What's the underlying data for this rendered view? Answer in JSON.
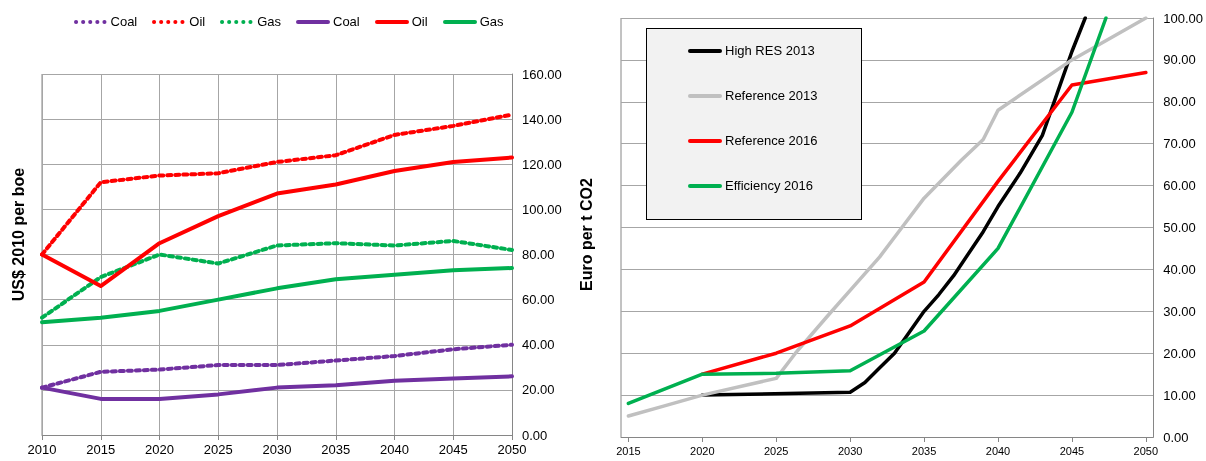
{
  "chart_data": [
    {
      "type": "line",
      "ylabel": "US$ 2010 per boe",
      "x": [
        2010,
        2015,
        2020,
        2025,
        2030,
        2035,
        2040,
        2045,
        2050
      ],
      "xlim": [
        2010,
        2050
      ],
      "xticks": [
        2010,
        2015,
        2020,
        2025,
        2030,
        2035,
        2040,
        2045,
        2050
      ],
      "ylim": [
        0,
        160
      ],
      "yticks": [
        {
          "value": 0,
          "label": "0.00"
        },
        {
          "value": 20,
          "label": "20.00"
        },
        {
          "value": 40,
          "label": "40.00"
        },
        {
          "value": 60,
          "label": "60.00"
        },
        {
          "value": 80,
          "label": "80.00"
        },
        {
          "value": 100,
          "label": "100.00"
        },
        {
          "value": 120,
          "label": "120.00"
        },
        {
          "value": 140,
          "label": "140.00"
        },
        {
          "value": 160,
          "label": "160.00"
        }
      ],
      "grid": true,
      "legend": "top",
      "marker": "none",
      "line_style": "solid",
      "series": [
        {
          "name": "Coal",
          "color": "#7030a0",
          "line_style": "dotted",
          "values": [
            21,
            28,
            29,
            31,
            31,
            33,
            35,
            38,
            40
          ]
        },
        {
          "name": "Oil",
          "color": "#ff0000",
          "line_style": "dotted",
          "values": [
            80,
            112,
            115,
            116,
            121,
            124,
            133,
            137,
            142
          ]
        },
        {
          "name": "Gas",
          "color": "#00b050",
          "line_style": "dotted",
          "values": [
            52,
            70,
            80,
            76,
            84,
            85,
            84,
            86,
            82
          ]
        },
        {
          "name": "Coal",
          "color": "#7030a0",
          "values": [
            21,
            16,
            16,
            18,
            21,
            22,
            24,
            25,
            26
          ]
        },
        {
          "name": "Oil",
          "color": "#ff0000",
          "values": [
            80,
            66,
            85,
            97,
            107,
            111,
            117,
            121,
            123
          ]
        },
        {
          "name": "Gas",
          "color": "#00b050",
          "values": [
            50,
            52,
            55,
            60,
            65,
            69,
            71,
            73,
            74
          ]
        }
      ]
    },
    {
      "type": "line",
      "ylabel": "Euro per t CO2",
      "xlim": [
        2014.5,
        2050.5
      ],
      "xticks": [
        2015,
        2020,
        2025,
        2030,
        2035,
        2040,
        2045,
        2050
      ],
      "ylim": [
        0,
        100
      ],
      "yticks": [
        {
          "value": 0,
          "label": "0.00"
        },
        {
          "value": 10,
          "label": "10.00"
        },
        {
          "value": 20,
          "label": "20.00"
        },
        {
          "value": 30,
          "label": "30.00"
        },
        {
          "value": 40,
          "label": "40.00"
        },
        {
          "value": 50,
          "label": "50.00"
        },
        {
          "value": 60,
          "label": "60.00"
        },
        {
          "value": 70,
          "label": "70.00"
        },
        {
          "value": 80,
          "label": "80.00"
        },
        {
          "value": 90,
          "label": "90.00"
        },
        {
          "value": 100,
          "label": "100.00"
        }
      ],
      "grid": "y",
      "legend": "top left",
      "marker": "none",
      "line_style": "solid",
      "series": [
        {
          "name": "High RES 2013",
          "color": "#000000",
          "x": [
            2020,
            2030,
            2031,
            2032,
            2033,
            2034,
            2035,
            2036,
            2037,
            2039,
            2040,
            2041.5,
            2043,
            2044,
            2045,
            2045.9
          ],
          "values": [
            10,
            10.7,
            13,
            16.5,
            20,
            25,
            30,
            34,
            38.5,
            49,
            55,
            63,
            72,
            82,
            92,
            100
          ]
        },
        {
          "name": "Reference 2013",
          "color": "#c0c0c0",
          "x": [
            2015,
            2017.5,
            2020,
            2025,
            2026.3,
            2028.5,
            2030,
            2032,
            2033.5,
            2035,
            2037.5,
            2039,
            2040,
            2045,
            2050
          ],
          "values": [
            5,
            7.5,
            10,
            14,
            20,
            29,
            35,
            43,
            50,
            57,
            66,
            71,
            78,
            90,
            100
          ]
        },
        {
          "name": "Reference 2016",
          "color": "#ff0000",
          "x": [
            2020,
            2025,
            2030,
            2035,
            2040,
            2045,
            2050
          ],
          "values": [
            15,
            20,
            26.5,
            37,
            61,
            84,
            87
          ]
        },
        {
          "name": "Efficiency 2016",
          "color": "#00b050",
          "x": [
            2015,
            2020,
            2025,
            2030,
            2035,
            2040,
            2045,
            2047.3
          ],
          "values": [
            8,
            15,
            15.2,
            15.8,
            25.3,
            45,
            77.5,
            100
          ]
        }
      ]
    }
  ]
}
